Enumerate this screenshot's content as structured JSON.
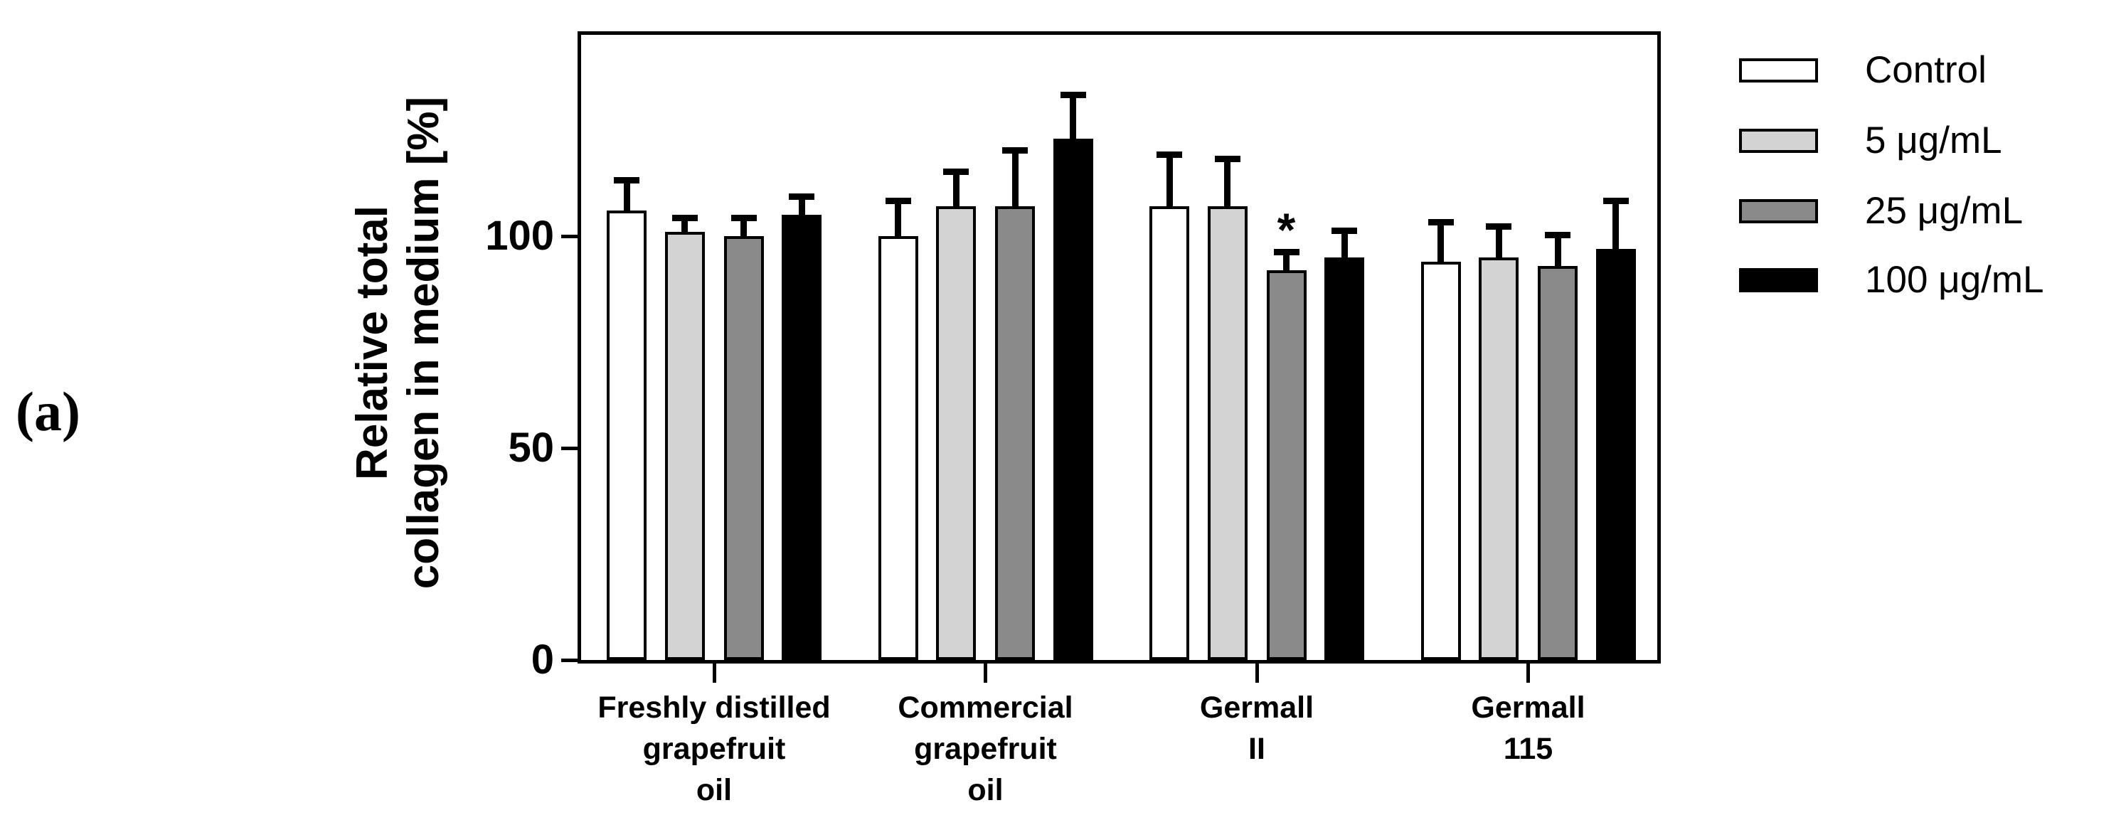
{
  "panel_label": "(a)",
  "y_axis": {
    "title_lines": [
      "Relative total",
      "collagen in medium [%]"
    ],
    "tick_labels": [
      "0",
      "50",
      "100"
    ],
    "tick_values": [
      0,
      50,
      100
    ]
  },
  "x_axis": {
    "category_lines": [
      [
        "Freshly distilled",
        "grapefruit",
        "oil"
      ],
      [
        "Commercial",
        "grapefruit",
        "oil"
      ],
      [
        "Germall",
        "II"
      ],
      [
        "Germall",
        "115"
      ]
    ]
  },
  "legend": {
    "entries": [
      {
        "label": "Control",
        "color": "#ffffff"
      },
      {
        "label": "5 μg/mL",
        "color": "#d3d3d3"
      },
      {
        "label": "25 μg/mL",
        "color": "#8a8a8a"
      },
      {
        "label": "100 μg/mL",
        "color": "#000000"
      }
    ]
  },
  "colors": {
    "axis": "#000000",
    "background": "#ffffff"
  },
  "chart_data": {
    "type": "bar",
    "title": "",
    "xlabel": "",
    "ylabel": "Relative total collagen in medium [%]",
    "ylim": [
      0,
      150
    ],
    "yticks": [
      0,
      50,
      100
    ],
    "grid": false,
    "legend_position": "top-right",
    "error_bars": "sd, upper only",
    "categories": [
      "Freshly distilled grapefruit oil",
      "Commercial grapefruit oil",
      "Germall II",
      "Germall 115"
    ],
    "series": [
      {
        "name": "Control",
        "color": "#ffffff",
        "values": [
          106,
          100,
          107,
          94
        ],
        "errors": [
          8,
          9,
          13,
          10
        ]
      },
      {
        "name": "5 μg/mL",
        "color": "#d3d3d3",
        "values": [
          101,
          107,
          107,
          95
        ],
        "errors": [
          4,
          9,
          12,
          8
        ]
      },
      {
        "name": "25 μg/mL",
        "color": "#8a8a8a",
        "values": [
          100,
          107,
          92,
          93
        ],
        "errors": [
          5,
          14,
          5,
          8
        ]
      },
      {
        "name": "100 μg/mL",
        "color": "#000000",
        "values": [
          105,
          123,
          95,
          97
        ],
        "errors": [
          5,
          11,
          7,
          12
        ]
      }
    ],
    "annotations": [
      {
        "symbol": "*",
        "category_index": 2,
        "series_index": 2,
        "meaning": "significant difference"
      }
    ]
  }
}
